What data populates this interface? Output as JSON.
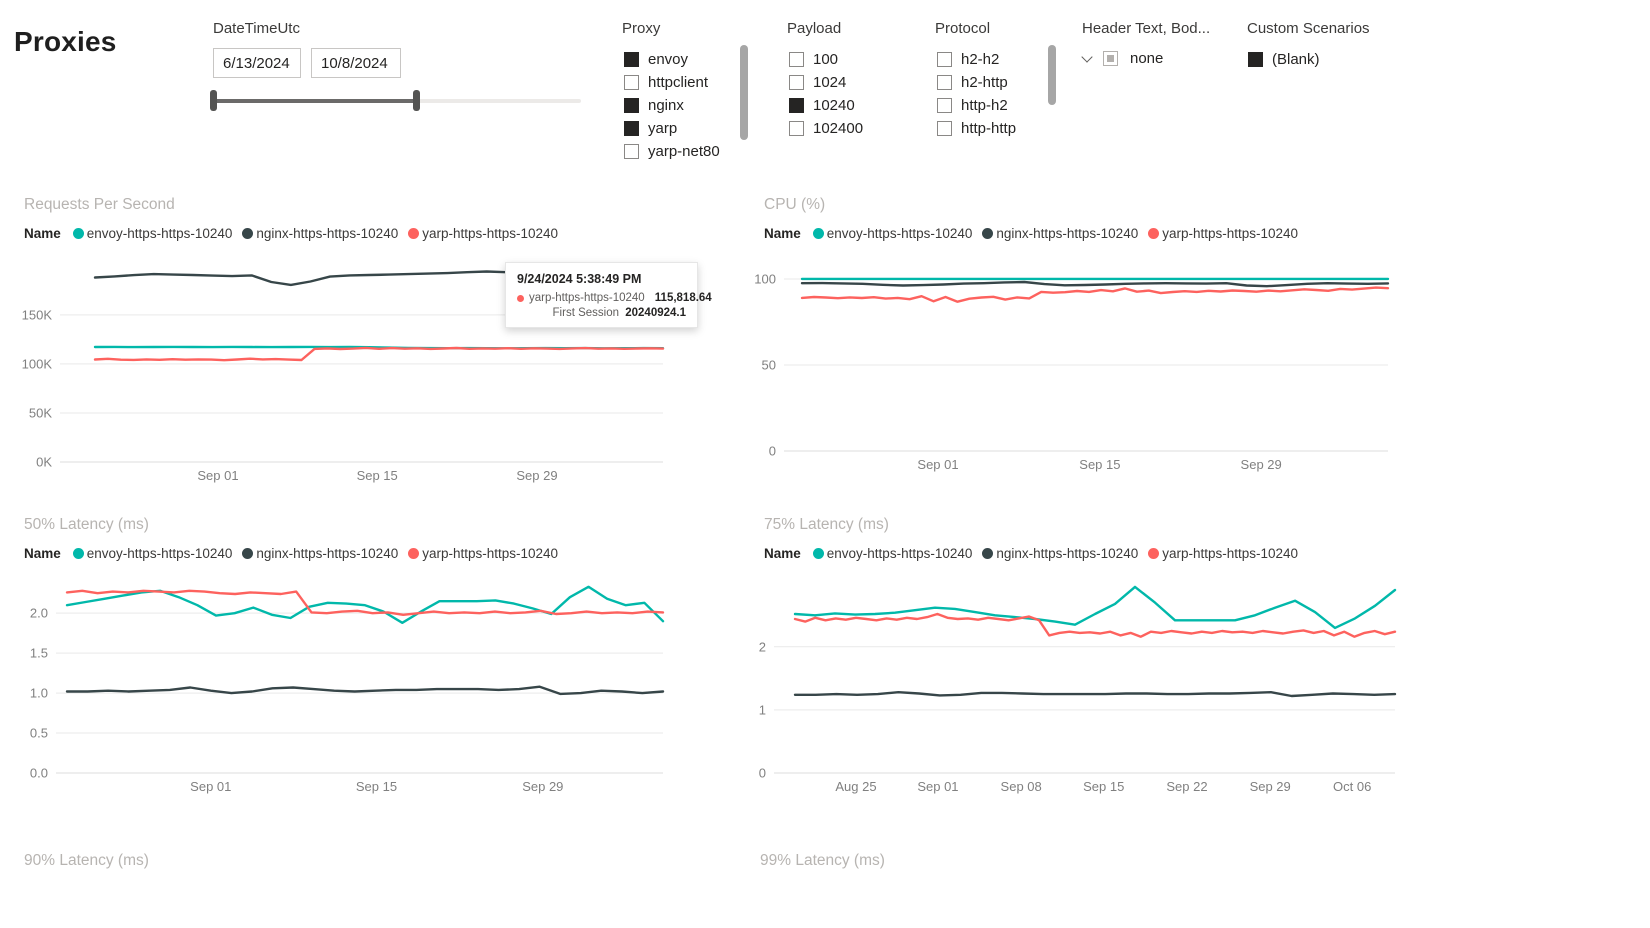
{
  "page": {
    "title": "Proxies"
  },
  "colors": {
    "envoy": "#01b8aa",
    "nginx": "#374649",
    "yarp": "#fd625e",
    "chart_title": "#b7b4b1",
    "axis_text": "#808080"
  },
  "icons": {
    "header_text_expand": "chevron-down-icon"
  },
  "filters": {
    "datetime": {
      "label": "DateTimeUtc",
      "start": "6/13/2024",
      "end": "10/8/2024"
    },
    "proxy": {
      "label": "Proxy",
      "options": [
        {
          "label": "envoy",
          "checked": true
        },
        {
          "label": "httpclient",
          "checked": false
        },
        {
          "label": "nginx",
          "checked": true
        },
        {
          "label": "yarp",
          "checked": true
        },
        {
          "label": "yarp-net80",
          "checked": false
        }
      ]
    },
    "payload": {
      "label": "Payload",
      "options": [
        {
          "label": "100",
          "checked": false
        },
        {
          "label": "1024",
          "checked": false
        },
        {
          "label": "10240",
          "checked": true
        },
        {
          "label": "102400",
          "checked": false
        }
      ]
    },
    "protocol": {
      "label": "Protocol",
      "options": [
        {
          "label": "h2-h2",
          "checked": false
        },
        {
          "label": "h2-http",
          "checked": false
        },
        {
          "label": "http-h2",
          "checked": false
        },
        {
          "label": "http-http",
          "checked": false
        }
      ]
    },
    "header_text": {
      "label": "Header Text, Bod...",
      "selected": "none"
    },
    "custom_scenarios": {
      "label": "Custom Scenarios",
      "options": [
        {
          "label": "(Blank)",
          "checked": true
        }
      ]
    }
  },
  "legend": {
    "title": "Name",
    "items": [
      {
        "name": "envoy-https-https-10240",
        "color": "#01b8aa"
      },
      {
        "name": "nginx-https-https-10240",
        "color": "#374649"
      },
      {
        "name": "yarp-https-https-10240",
        "color": "#fd625e"
      }
    ]
  },
  "tooltip": {
    "datetime": "9/24/2024 5:38:49 PM",
    "series": "yarp-https-https-10240",
    "value": "115,818.64",
    "first_session_label": "First Session",
    "first_session_value": "20240924.1"
  },
  "bottom_row": {
    "left_title": "90% Latency (ms)",
    "right_title": "99% Latency (ms)"
  },
  "chart_data": [
    {
      "type": "line",
      "title": "Requests Per Second",
      "xlabel": "",
      "ylabel": "",
      "grid": true,
      "legend_position": "top",
      "ylim": [
        0,
        212000
      ],
      "yticks": [
        {
          "value": 0,
          "label": "0K"
        },
        {
          "value": 50000,
          "label": "50K"
        },
        {
          "value": 100000,
          "label": "100K"
        },
        {
          "value": 150000,
          "label": "150K"
        }
      ],
      "xticks": [
        {
          "pos": 0.262,
          "label": "Sep 01"
        },
        {
          "pos": 0.526,
          "label": "Sep 15"
        },
        {
          "pos": 0.791,
          "label": "Sep 29"
        }
      ],
      "series": [
        {
          "name": "envoy-https-https-10240",
          "color": "#01b8aa",
          "values": [
            117200,
            117300,
            117100,
            117200,
            117300,
            117200,
            117100,
            117300,
            117200,
            117100,
            117200,
            117300,
            117100,
            117200,
            117000,
            116600,
            116300,
            116100,
            116000,
            116100,
            116000,
            115900,
            116000,
            116100,
            116000,
            116100,
            115900,
            116000,
            116100,
            116000
          ]
        },
        {
          "name": "nginx-https-https-10240",
          "color": "#374649",
          "values": [
            188000,
            189200,
            190500,
            191500,
            191000,
            190600,
            190000,
            189500,
            190200,
            183500,
            180500,
            184000,
            189000,
            190200,
            190600,
            191000,
            191500,
            192000,
            192500,
            193500,
            194200,
            193500,
            193000,
            192500,
            191500,
            190500,
            189800,
            189200,
            188800,
            188500
          ]
        },
        {
          "name": "yarp-https-https-10240",
          "color": "#fd625e",
          "values": [
            104500,
            105200,
            104300,
            104100,
            104600,
            104200,
            104800,
            104300,
            104600,
            104400,
            103800,
            104500,
            105300,
            104600,
            104900,
            104400,
            104000,
            115300,
            115818,
            115200,
            115600,
            116300,
            115400,
            116100,
            115500,
            115900,
            115300,
            115700,
            116200,
            115400,
            115800,
            115500,
            116000,
            115400,
            115900,
            115600,
            115300,
            115800,
            116100,
            115500,
            115800,
            115400,
            115700,
            115900,
            115600
          ]
        }
      ]
    },
    {
      "type": "line",
      "title": "CPU (%)",
      "xlabel": "",
      "ylabel": "",
      "grid": true,
      "legend_position": "top",
      "ylim": [
        0,
        114.5
      ],
      "yticks": [
        {
          "value": 0,
          "label": "0"
        },
        {
          "value": 50,
          "label": "50"
        },
        {
          "value": 100,
          "label": "100"
        }
      ],
      "xticks": [
        {
          "pos": 0.255,
          "label": "Sep 01"
        },
        {
          "pos": 0.523,
          "label": "Sep 15"
        },
        {
          "pos": 0.79,
          "label": "Sep 29"
        }
      ],
      "series": [
        {
          "name": "envoy-https-https-10240",
          "color": "#01b8aa",
          "values": [
            100,
            100,
            100,
            100,
            100,
            100,
            100,
            100,
            100,
            100,
            100,
            100,
            100,
            100,
            100,
            100,
            100,
            100,
            100,
            100,
            100,
            100,
            100,
            100,
            100,
            100,
            100,
            100,
            100,
            100
          ]
        },
        {
          "name": "nginx-https-https-10240",
          "color": "#374649",
          "values": [
            97.5,
            97.6,
            97.4,
            97.2,
            96.6,
            96.2,
            96.4,
            96.8,
            97.3,
            97.5,
            98.0,
            98.2,
            97.0,
            96.3,
            96.5,
            96.8,
            97.2,
            97.4,
            97.5,
            97.4,
            97.3,
            97.5,
            96.2,
            95.8,
            96.4,
            97.2,
            97.5,
            97.3,
            97.2,
            97.4
          ]
        },
        {
          "name": "yarp-https-https-10240",
          "color": "#fd625e",
          "values": [
            89.0,
            89.5,
            89.2,
            88.8,
            89.3,
            88.9,
            89.4,
            88.6,
            89.0,
            88.2,
            90.0,
            87.0,
            89.5,
            86.8,
            88.5,
            89.2,
            89.6,
            88.0,
            89.3,
            88.7,
            92.5,
            92.0,
            92.3,
            93.0,
            92.5,
            93.5,
            92.8,
            94.5,
            92.6,
            93.2,
            91.8,
            92.4,
            92.9,
            92.5,
            93.1,
            92.7,
            93.3,
            93.0,
            92.6,
            93.2,
            92.8,
            93.4,
            94.0,
            93.6,
            93.1,
            94.2,
            93.8,
            94.4,
            95.0,
            94.6
          ]
        }
      ]
    },
    {
      "type": "line",
      "title": "50% Latency (ms)",
      "xlabel": "",
      "ylabel": "",
      "grid": true,
      "legend_position": "top",
      "ylim": [
        0,
        2.14
      ],
      "yticks": [
        {
          "value": 0,
          "label": "0.0"
        },
        {
          "value": 0.5,
          "label": "0.5"
        },
        {
          "value": 1.0,
          "label": "1.0"
        },
        {
          "value": 1.5,
          "label": "1.5"
        },
        {
          "value": 2.0,
          "label": "2.0"
        }
      ],
      "xticks": [
        {
          "pos": 0.255,
          "label": "Sep 01"
        },
        {
          "pos": 0.528,
          "label": "Sep 15"
        },
        {
          "pos": 0.802,
          "label": "Sep 29"
        }
      ],
      "series": [
        {
          "name": "envoy-https-https-10240",
          "color": "#01b8aa",
          "values": [
            2.1,
            2.14,
            2.18,
            2.22,
            2.26,
            2.28,
            2.2,
            2.1,
            1.97,
            2.0,
            2.07,
            1.98,
            1.94,
            2.08,
            2.13,
            2.12,
            2.1,
            2.02,
            1.88,
            2.02,
            2.15,
            2.15,
            2.15,
            2.16,
            2.12,
            2.06,
            1.99,
            2.2,
            2.33,
            2.18,
            2.1,
            2.13,
            1.9
          ]
        },
        {
          "name": "nginx-https-https-10240",
          "color": "#374649",
          "values": [
            1.02,
            1.02,
            1.03,
            1.02,
            1.03,
            1.04,
            1.07,
            1.03,
            1.0,
            1.02,
            1.06,
            1.07,
            1.05,
            1.03,
            1.02,
            1.03,
            1.04,
            1.04,
            1.05,
            1.05,
            1.05,
            1.04,
            1.05,
            1.08,
            0.99,
            1.0,
            1.03,
            1.02,
            1.0,
            1.02
          ]
        },
        {
          "name": "yarp-https-https-10240",
          "color": "#fd625e",
          "values": [
            2.26,
            2.28,
            2.25,
            2.27,
            2.26,
            2.28,
            2.27,
            2.26,
            2.28,
            2.27,
            2.25,
            2.24,
            2.26,
            2.25,
            2.24,
            2.27,
            2.01,
            2.0,
            2.02,
            2.03,
            2.0,
            2.01,
            1.98,
            2.0,
            2.02,
            2.0,
            2.01,
            2.0,
            2.02,
            2.0,
            2.01,
            2.03,
            1.99,
            2.0,
            2.02,
            2.0,
            2.01,
            2.0,
            2.02,
            2.01
          ]
        }
      ]
    },
    {
      "type": "line",
      "title": "75% Latency (ms)",
      "xlabel": "",
      "ylabel": "",
      "grid": true,
      "legend_position": "top",
      "ylim": [
        0,
        2.71
      ],
      "yticks": [
        {
          "value": 0,
          "label": "0"
        },
        {
          "value": 1,
          "label": "1"
        },
        {
          "value": 2,
          "label": "2"
        }
      ],
      "xticks": [
        {
          "pos": 0.132,
          "label": "Aug 25"
        },
        {
          "pos": 0.264,
          "label": "Sep 01"
        },
        {
          "pos": 0.398,
          "label": "Sep 08"
        },
        {
          "pos": 0.531,
          "label": "Sep 15"
        },
        {
          "pos": 0.665,
          "label": "Sep 22"
        },
        {
          "pos": 0.799,
          "label": "Sep 29"
        },
        {
          "pos": 0.931,
          "label": "Oct 06"
        }
      ],
      "series": [
        {
          "name": "envoy-https-https-10240",
          "color": "#01b8aa",
          "values": [
            2.52,
            2.5,
            2.53,
            2.51,
            2.52,
            2.54,
            2.58,
            2.62,
            2.6,
            2.55,
            2.5,
            2.47,
            2.44,
            2.4,
            2.35,
            2.52,
            2.68,
            2.95,
            2.7,
            2.42,
            2.42,
            2.42,
            2.42,
            2.5,
            2.62,
            2.73,
            2.55,
            2.3,
            2.45,
            2.65,
            2.9
          ]
        },
        {
          "name": "nginx-https-https-10240",
          "color": "#374649",
          "values": [
            1.24,
            1.24,
            1.25,
            1.24,
            1.25,
            1.28,
            1.26,
            1.23,
            1.24,
            1.27,
            1.27,
            1.26,
            1.25,
            1.25,
            1.25,
            1.25,
            1.26,
            1.26,
            1.25,
            1.25,
            1.26,
            1.26,
            1.27,
            1.28,
            1.22,
            1.24,
            1.26,
            1.25,
            1.24,
            1.25
          ]
        },
        {
          "name": "yarp-https-https-10240",
          "color": "#fd625e",
          "values": [
            2.44,
            2.4,
            2.46,
            2.42,
            2.45,
            2.43,
            2.46,
            2.44,
            2.42,
            2.45,
            2.43,
            2.46,
            2.44,
            2.47,
            2.52,
            2.46,
            2.44,
            2.45,
            2.43,
            2.46,
            2.44,
            2.42,
            2.45,
            2.48,
            2.42,
            2.18,
            2.22,
            2.24,
            2.22,
            2.23,
            2.21,
            2.24,
            2.18,
            2.22,
            2.16,
            2.24,
            2.22,
            2.25,
            2.23,
            2.21,
            2.24,
            2.22,
            2.25,
            2.23,
            2.24,
            2.22,
            2.25,
            2.23,
            2.21,
            2.24,
            2.26,
            2.22,
            2.25,
            2.18,
            2.24,
            2.16,
            2.22,
            2.25,
            2.2,
            2.24
          ]
        }
      ]
    }
  ]
}
